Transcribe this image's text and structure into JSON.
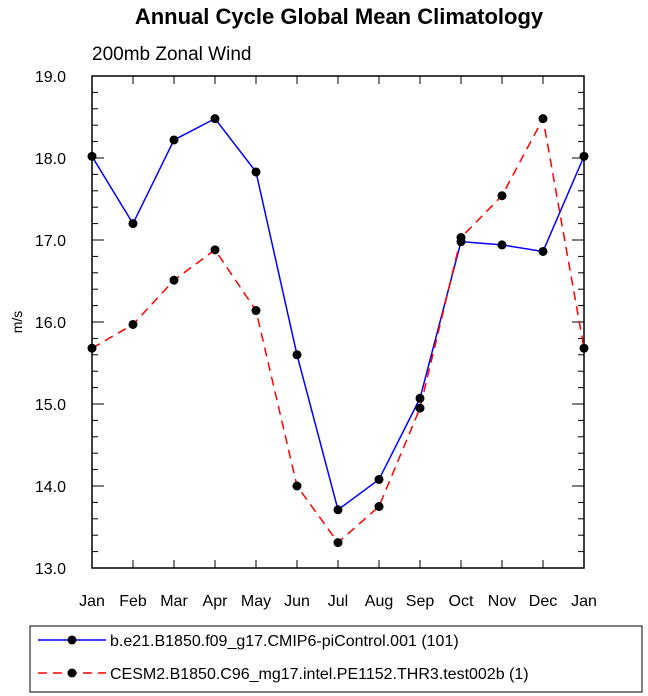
{
  "chart_data": {
    "type": "line",
    "title": "Annual Cycle Global Mean Climatology",
    "subtitle": "200mb Zonal Wind",
    "xlabel": "",
    "ylabel": "m/s",
    "ylim": [
      13.0,
      19.0
    ],
    "yticks": [
      "13.0",
      "14.0",
      "15.0",
      "16.0",
      "17.0",
      "18.0",
      "19.0"
    ],
    "categories": [
      "Jan",
      "Feb",
      "Mar",
      "Apr",
      "May",
      "Jun",
      "Jul",
      "Aug",
      "Sep",
      "Oct",
      "Nov",
      "Dec",
      "Jan"
    ],
    "series": [
      {
        "name": "b.e21.B1850.f09_g17.CMIP6-piControl.001 (101)",
        "color": "#0000ff",
        "dash": "solid",
        "values": [
          18.02,
          17.2,
          18.22,
          18.48,
          17.83,
          15.6,
          13.71,
          14.08,
          15.07,
          16.98,
          16.94,
          16.86,
          18.02
        ]
      },
      {
        "name": "CESM2.B1850.C96_mg17.intel.PE1152.THR3.test002b (1)",
        "color": "#ff0000",
        "dash": "dashed",
        "values": [
          15.68,
          15.97,
          16.51,
          16.88,
          16.14,
          14.0,
          13.31,
          13.75,
          14.95,
          17.03,
          17.54,
          18.48,
          15.68
        ]
      }
    ],
    "legend_position": "bottom"
  }
}
